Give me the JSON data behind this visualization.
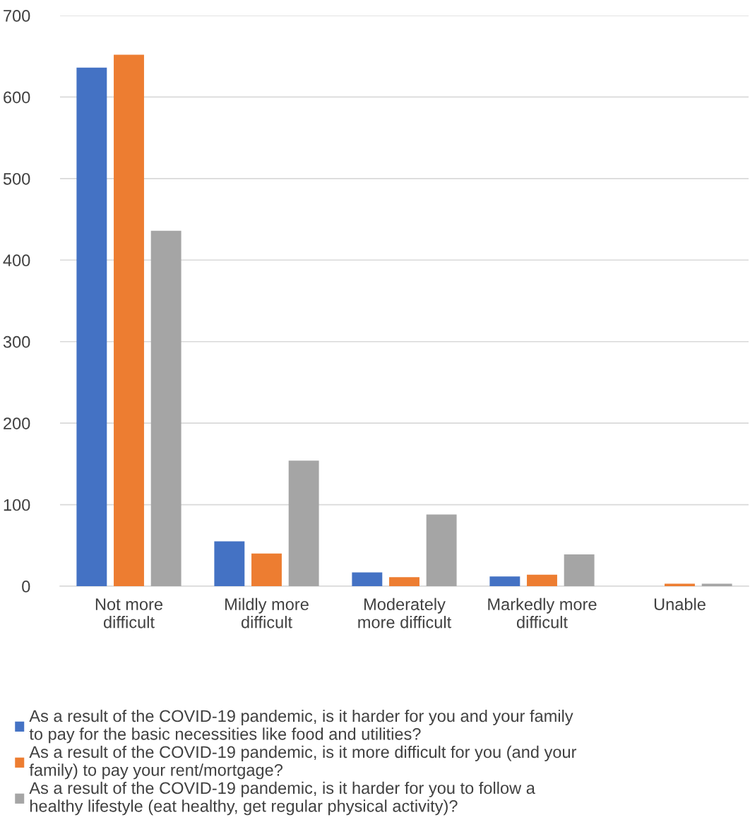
{
  "chart_data": {
    "type": "bar",
    "categories": [
      "Not more\ndifficult",
      "Mildly more\ndifficult",
      "Moderately\nmore difficult",
      "Markedly more\ndifficult",
      "Unable"
    ],
    "series": [
      {
        "name": "As a result of the COVID-19 pandemic, is it harder for you and your family\nto pay for the basic necessities like food and utilities?",
        "color": "#4472c4",
        "values": [
          636,
          55,
          17,
          12,
          0
        ]
      },
      {
        "name": "As a result of the COVID-19 pandemic, is it more difficult for you (and your\nfamily) to pay your rent/mortgage?",
        "color": "#ed7d31",
        "values": [
          652,
          40,
          11,
          14,
          3
        ]
      },
      {
        "name": "As a result of the COVID-19 pandemic, is it harder for you to follow a\nhealthy lifestyle (eat healthy, get regular physical activity)?",
        "color": "#a5a5a5",
        "values": [
          436,
          154,
          88,
          39,
          3
        ]
      }
    ],
    "ylim": [
      0,
      700
    ],
    "yticks": [
      0,
      100,
      200,
      300,
      400,
      500,
      600,
      700
    ],
    "grid": "y",
    "legend": "bottom"
  }
}
